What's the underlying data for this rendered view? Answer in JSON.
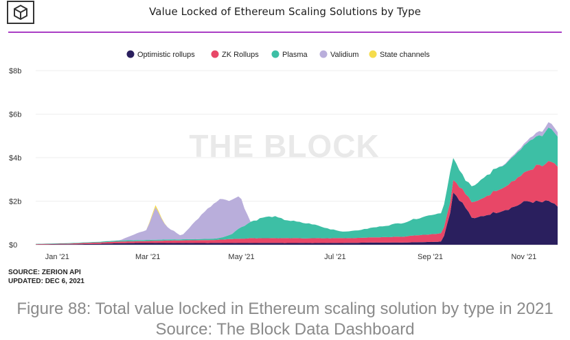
{
  "logo": {
    "icon": "the-block-cube-icon"
  },
  "colors": {
    "optimistic": "#2a1f5e",
    "zk": "#e84767",
    "plasma": "#3dbfa5",
    "validium": "#b9aedb",
    "state": "#f5dc4c",
    "title_rule": "#a93cc4"
  },
  "chart_data": {
    "type": "area",
    "stacked": true,
    "title": "Value Locked of Ethereum Scaling Solutions by Type",
    "watermark": "THE BLOCK",
    "xlabel": "",
    "ylabel": "",
    "ylim": [
      0,
      8
    ],
    "y_ticks": [
      {
        "value": 0,
        "label": "$0"
      },
      {
        "value": 2,
        "label": "$2b"
      },
      {
        "value": 4,
        "label": "$4b"
      },
      {
        "value": 6,
        "label": "$6b"
      },
      {
        "value": 8,
        "label": "$8b"
      }
    ],
    "x_ticks": [
      {
        "day": 14,
        "label": "Jan '21"
      },
      {
        "day": 73,
        "label": "Mar '21"
      },
      {
        "day": 134,
        "label": "May '21"
      },
      {
        "day": 195,
        "label": "Jul '21"
      },
      {
        "day": 257,
        "label": "Sep '21"
      },
      {
        "day": 318,
        "label": "Nov '21"
      }
    ],
    "x_range": [
      0,
      340
    ],
    "legend_position": "top-center",
    "x": [
      0,
      20,
      40,
      55,
      65,
      72,
      78,
      85,
      95,
      105,
      115,
      120,
      127,
      133,
      140,
      148,
      155,
      162,
      170,
      180,
      190,
      200,
      210,
      220,
      230,
      240,
      250,
      258,
      265,
      270,
      272,
      275,
      280,
      285,
      290,
      300,
      310,
      320,
      330,
      335,
      340
    ],
    "series": [
      {
        "name": "Optimistic rollups",
        "values": [
          0.01,
          0.02,
          0.04,
          0.07,
          0.08,
          0.08,
          0.08,
          0.08,
          0.08,
          0.08,
          0.08,
          0.08,
          0.08,
          0.08,
          0.08,
          0.08,
          0.08,
          0.08,
          0.08,
          0.08,
          0.08,
          0.08,
          0.09,
          0.1,
          0.1,
          0.1,
          0.12,
          0.13,
          0.15,
          1.5,
          2.4,
          2.2,
          1.7,
          1.15,
          1.3,
          1.5,
          1.7,
          2.0,
          1.95,
          2.0,
          1.7
        ]
      },
      {
        "name": "ZK Rollups",
        "values": [
          0.02,
          0.03,
          0.06,
          0.08,
          0.08,
          0.09,
          0.1,
          0.11,
          0.12,
          0.13,
          0.14,
          0.15,
          0.18,
          0.2,
          0.22,
          0.22,
          0.22,
          0.22,
          0.22,
          0.22,
          0.22,
          0.22,
          0.22,
          0.24,
          0.25,
          0.28,
          0.32,
          0.35,
          0.4,
          0.5,
          0.55,
          0.6,
          0.65,
          0.75,
          0.8,
          1.0,
          1.2,
          1.4,
          1.7,
          1.8,
          1.8
        ]
      },
      {
        "name": "Plasma",
        "values": [
          0.01,
          0.02,
          0.03,
          0.05,
          0.05,
          0.05,
          0.05,
          0.05,
          0.05,
          0.05,
          0.06,
          0.08,
          0.2,
          0.5,
          0.75,
          0.95,
          1.0,
          0.85,
          0.75,
          0.65,
          0.45,
          0.3,
          0.35,
          0.45,
          0.55,
          0.65,
          0.8,
          0.9,
          0.95,
          1.4,
          1.0,
          0.8,
          0.6,
          0.75,
          0.9,
          1.0,
          1.1,
          1.3,
          1.4,
          1.5,
          1.4
        ]
      },
      {
        "name": "Validium",
        "values": [
          0.0,
          0.0,
          0.0,
          0.01,
          0.3,
          0.45,
          1.45,
          0.6,
          0.15,
          0.9,
          1.55,
          1.75,
          1.55,
          1.45,
          0.0,
          0.0,
          0.0,
          0.0,
          0.0,
          0.0,
          0.0,
          0.0,
          0.0,
          0.0,
          0.0,
          0.0,
          0.0,
          0.0,
          0.0,
          0.0,
          0.0,
          0.0,
          0.0,
          0.0,
          0.0,
          0.0,
          0.05,
          0.1,
          0.2,
          0.25,
          0.2
        ]
      },
      {
        "name": "State channels",
        "values": [
          0.0,
          0.0,
          0.0,
          0.0,
          0.0,
          0.0,
          0.1,
          0.0,
          0.0,
          0.0,
          0.0,
          0.0,
          0.0,
          0.0,
          0.0,
          0.0,
          0.0,
          0.0,
          0.0,
          0.0,
          0.0,
          0.0,
          0.0,
          0.0,
          0.0,
          0.0,
          0.0,
          0.0,
          0.0,
          0.0,
          0.0,
          0.0,
          0.0,
          0.0,
          0.0,
          0.0,
          0.0,
          0.0,
          0.0,
          0.0,
          0.0
        ]
      }
    ]
  },
  "source": {
    "line1": "SOURCE: ZERION API",
    "line2": "UPDATED: DEC 6, 2021"
  },
  "caption": {
    "line1": "Figure 88: Total value locked in Ethereum scaling solution by type in 2021",
    "line2": "Source: The Block Data Dashboard"
  }
}
